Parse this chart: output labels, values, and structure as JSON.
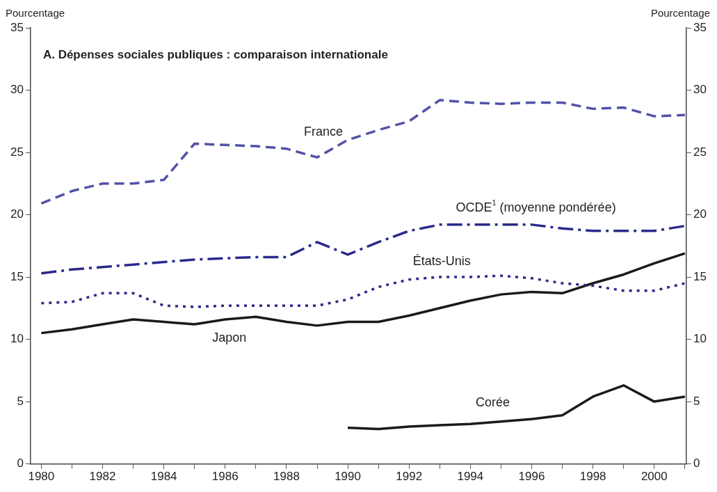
{
  "chart_data": {
    "type": "line",
    "title": "A. Dépenses sociales publiques : comparaison internationale",
    "ylabel": "Pourcentage",
    "y2label": "Pourcentage",
    "x": [
      1980,
      1981,
      1982,
      1983,
      1984,
      1985,
      1986,
      1987,
      1988,
      1989,
      1990,
      1991,
      1992,
      1993,
      1994,
      1995,
      1996,
      1997,
      1998,
      1999,
      2000,
      2001
    ],
    "series": [
      {
        "name": "France",
        "color": "#5252a8",
        "line_style": "dashed",
        "values": [
          20.9,
          21.9,
          22.5,
          22.5,
          22.8,
          25.7,
          25.6,
          25.5,
          25.3,
          24.6,
          26.0,
          26.8,
          27.5,
          29.2,
          29.0,
          28.9,
          29.0,
          29.0,
          28.5,
          28.6,
          27.9,
          28.0
        ]
      },
      {
        "name": "OCDE$^{1}$ (moyenne pondérée)",
        "color": "#2a2a8c",
        "line_style": "dashdot",
        "values": [
          15.3,
          15.6,
          15.8,
          16.0,
          16.2,
          16.4,
          16.5,
          16.6,
          16.6,
          17.8,
          16.8,
          17.8,
          18.7,
          19.2,
          19.2,
          19.2,
          19.2,
          18.9,
          18.7,
          18.7,
          18.7,
          19.1
        ]
      },
      {
        "name": "États-Unis",
        "color": "#2a2a8c",
        "line_style": "dotted",
        "values": [
          12.9,
          13.0,
          13.7,
          13.7,
          12.7,
          12.6,
          12.7,
          12.7,
          12.7,
          12.7,
          13.2,
          14.2,
          14.8,
          15.0,
          15.0,
          15.1,
          14.9,
          14.5,
          14.3,
          13.9,
          13.9,
          14.5
        ]
      },
      {
        "name": "Japon",
        "color": "#1a1a1a",
        "line_style": "solid",
        "values": [
          10.5,
          10.8,
          11.2,
          11.6,
          11.4,
          11.2,
          11.6,
          11.8,
          11.4,
          11.1,
          11.4,
          11.4,
          11.9,
          12.5,
          13.1,
          13.6,
          13.8,
          13.7,
          14.5,
          15.2,
          16.1,
          16.9
        ]
      },
      {
        "name": "Corée",
        "color": "#1a1a1a",
        "line_style": "solid",
        "values": [
          null,
          null,
          null,
          null,
          null,
          null,
          null,
          null,
          null,
          null,
          2.9,
          2.8,
          3.0,
          3.1,
          3.2,
          3.4,
          3.6,
          3.9,
          5.4,
          6.3,
          5.0,
          5.4
        ]
      }
    ],
    "xlim": [
      1979.65,
      2001.05
    ],
    "xticks": [
      1980,
      {
        "value": 1981,
        "label": null
      },
      1982,
      {
        "value": 1983,
        "label": null
      },
      1984,
      {
        "value": 1985,
        "label": null
      },
      1986,
      {
        "value": 1987,
        "label": null
      },
      1988,
      {
        "value": 1989,
        "label": null
      },
      1990,
      {
        "value": 1991,
        "label": null
      },
      1992,
      {
        "value": 1993,
        "label": null
      },
      1994,
      {
        "value": 1995,
        "label": null
      },
      1996,
      {
        "value": 1997,
        "label": null
      },
      1998,
      {
        "value": 1999,
        "label": null
      },
      2000,
      {
        "value": 2001,
        "label": null
      }
    ],
    "ylim": [
      0,
      35
    ],
    "yticks": [
      0,
      5,
      10,
      15,
      20,
      25,
      30,
      35
    ],
    "y2lim": [
      0,
      35
    ],
    "y2ticks": [
      0,
      5,
      10,
      15,
      20,
      25,
      30,
      35
    ],
    "grid": false,
    "legend": false,
    "marker": "none"
  }
}
